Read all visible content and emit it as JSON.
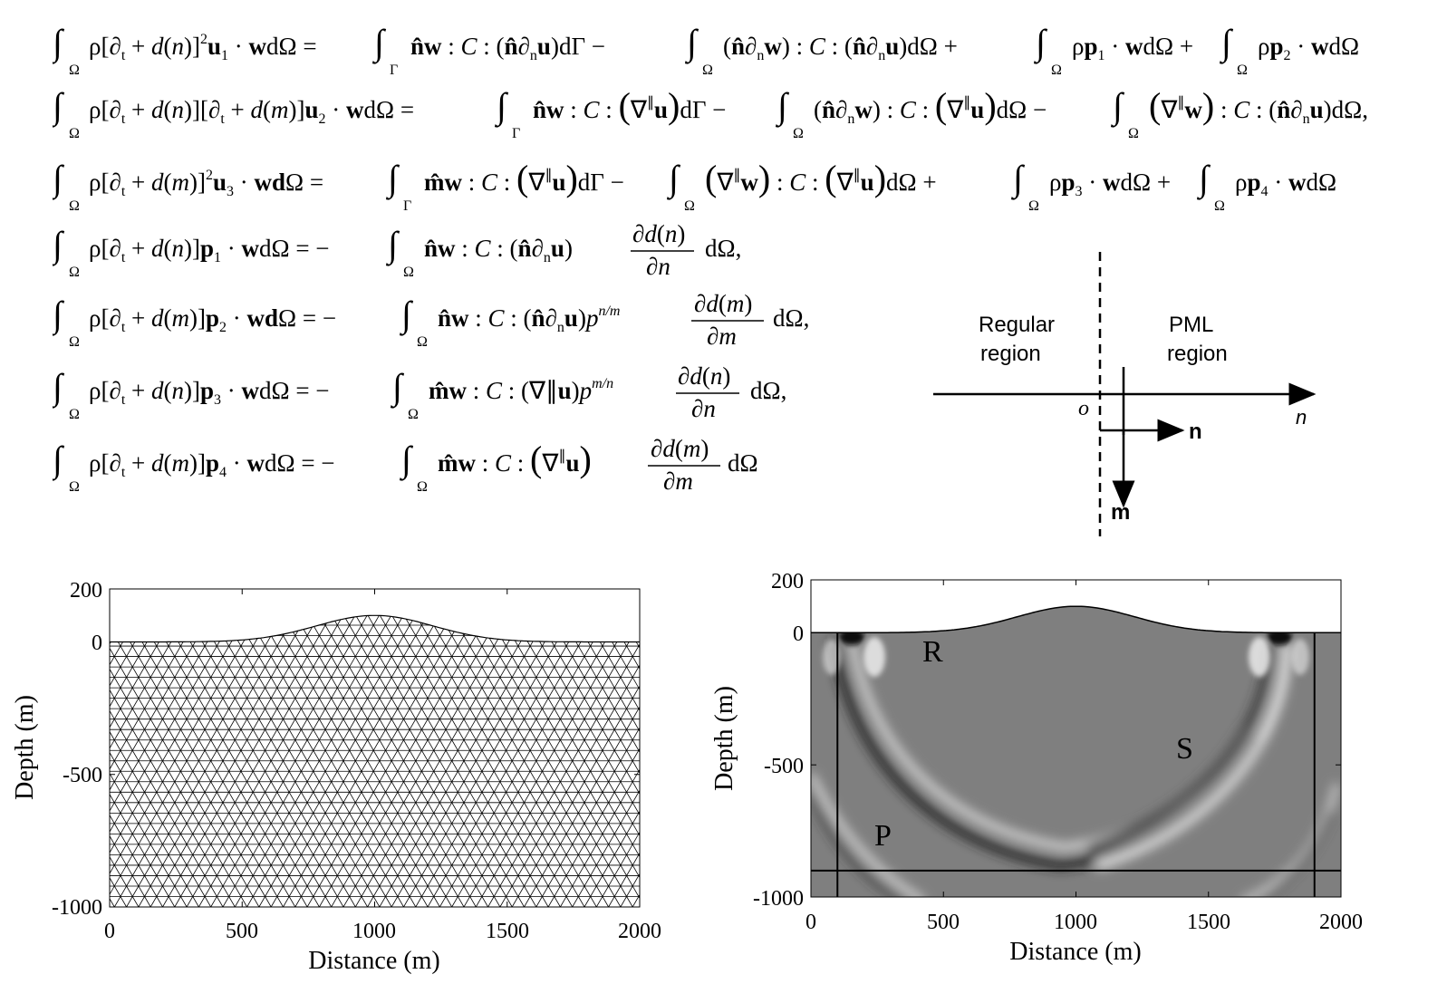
{
  "equations": [
    "∫_Ω ρ[∂_t + d(n)]² u₁ · w dΩ = ∫_Γ n̂w : C : (n̂∂_n u) dΓ − ∫_Ω (n̂∂_n w) : C : (n̂∂_n u) dΩ + ∫_Ω ρ p₁ · w dΩ + ∫_Ω ρ p₂ · w dΩ",
    "∫_Ω ρ[∂_t + d(n)][∂_t + d(m)] u₂ · w dΩ = ∫_Γ n̂w : C : (∇^∥ u) dΓ − ∫_Ω (n̂∂_n w) : C : (∇^∥ u) dΩ − ∫_Ω (∇^∥ w) : C : (n̂∂_n u) dΩ,",
    "∫_Ω ρ[∂_t + d(m)]² u₃ · w dΩ = ∫_Γ m̂w : C : (∇^∥ u) dΓ − ∫_Ω (∇^∥ w) : C : (∇^∥ u) dΩ + ∫_Ω ρ p₃ · w dΩ + ∫_Ω ρ p₄ · w dΩ",
    "∫_Ω ρ[∂_t + d(n)] p₁ · w dΩ = − ∫_Ω n̂w : C : (n̂∂_n u) ∂d(n)/∂n dΩ,",
    "∫_Ω ρ[∂_t + d(m)] p₂ · w dΩ = − ∫_Ω n̂w : C : (n̂∂_n u) p^{n/m} ∂d(m)/∂m dΩ,",
    "∫_Ω ρ[∂_t + d(n)] p₃ · w dΩ = − ∫_Ω m̂w : C : (∇∥u) p^{m/n} ∂d(n)/∂n dΩ,",
    "∫_Ω ρ[∂_t + d(m)] p₄ · w dΩ = − ∫_Ω m̂w : C : (∇^∥ u) ∂d(m)/∂m dΩ"
  ],
  "pml_diagram": {
    "regular_label_1": "Regular",
    "regular_label_2": "region",
    "pml_label_1": "PML",
    "pml_label_2": "region",
    "origin": "o",
    "axis_label": "n",
    "normal_label": "n",
    "tangent_label": "m"
  },
  "mesh_plot": {
    "ylabel": "Depth (m)",
    "xlabel": "Distance (m)",
    "xticks": [
      "0",
      "500",
      "1000",
      "1500",
      "2000"
    ],
    "yticks": [
      "200",
      "0",
      "-500",
      "-1000"
    ],
    "xlim": [
      0,
      2000
    ],
    "ylim": [
      -1000,
      200
    ],
    "topography": {
      "peak_x": 1000,
      "peak_height": 100,
      "baseline": 0
    }
  },
  "wavefield_plot": {
    "ylabel": "Depth (m)",
    "xlabel": "Distance (m)",
    "xticks": [
      "0",
      "500",
      "1000",
      "1500",
      "2000"
    ],
    "yticks": [
      "200",
      "0",
      "-500",
      "-1000"
    ],
    "xlim": [
      0,
      2000
    ],
    "ylim": [
      -1000,
      200
    ],
    "wave_labels": {
      "R": "R",
      "S": "S",
      "P": "P"
    },
    "pml_boundaries": {
      "left_x": 100,
      "right_x": 1900,
      "bottom_depth": -900
    }
  }
}
